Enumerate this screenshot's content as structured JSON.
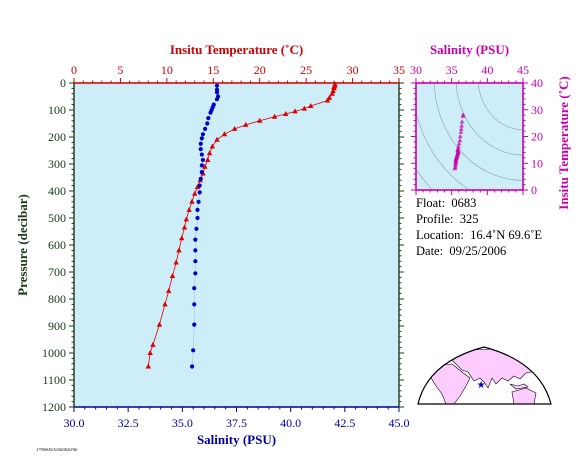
{
  "chart_data": [
    {
      "type": "line",
      "panel": "main-profile",
      "ylabel": "Pressure (decibar)",
      "ylim": [
        1200,
        0
      ],
      "y_ticks": [
        0,
        100,
        200,
        300,
        400,
        500,
        600,
        700,
        800,
        900,
        1000,
        1100,
        1200
      ],
      "top_axis": {
        "label": "Insitu Temperature (˚C)",
        "range": [
          0,
          35
        ],
        "ticks": [
          0,
          5,
          10,
          15,
          20,
          25,
          30,
          35
        ],
        "color": "#cc0000"
      },
      "bottom_axis": {
        "label": "Salinity (PSU)",
        "range": [
          30.0,
          45.0
        ],
        "ticks": [
          "30.0",
          "32.5",
          "35.0",
          "37.5",
          "40.0",
          "42.5",
          "45.0"
        ],
        "color": "#000099"
      },
      "series": [
        {
          "quantity": "temperature",
          "axis": "top",
          "marker": "triangle",
          "color": "#dd0000",
          "points": [
            [
              28.1,
              5
            ],
            [
              28.1,
              10
            ],
            [
              28.0,
              15
            ],
            [
              28.0,
              20
            ],
            [
              27.9,
              30
            ],
            [
              27.8,
              40
            ],
            [
              27.5,
              55
            ],
            [
              27.3,
              65
            ],
            [
              25.5,
              85
            ],
            [
              24.8,
              95
            ],
            [
              23.8,
              105
            ],
            [
              22.8,
              115
            ],
            [
              21.6,
              125
            ],
            [
              20.0,
              140
            ],
            [
              18.5,
              155
            ],
            [
              17.3,
              170
            ],
            [
              16.2,
              190
            ],
            [
              15.4,
              210
            ],
            [
              14.9,
              235
            ],
            [
              14.6,
              260
            ],
            [
              14.4,
              285
            ],
            [
              14.1,
              310
            ],
            [
              13.9,
              335
            ],
            [
              13.6,
              360
            ],
            [
              13.3,
              385
            ],
            [
              13.0,
              410
            ],
            [
              12.7,
              440
            ],
            [
              12.4,
              470
            ],
            [
              12.1,
              505
            ],
            [
              11.9,
              535
            ],
            [
              11.6,
              575
            ],
            [
              11.3,
              620
            ],
            [
              11.0,
              665
            ],
            [
              10.6,
              715
            ],
            [
              10.2,
              770
            ],
            [
              9.8,
              820
            ],
            [
              9.2,
              895
            ],
            [
              8.5,
              970
            ],
            [
              8.2,
              1000
            ],
            [
              8.0,
              1050
            ]
          ]
        },
        {
          "quantity": "salinity",
          "axis": "bottom",
          "marker": "circle",
          "color": "#0000cc",
          "points": [
            [
              36.6,
              10
            ],
            [
              36.6,
              25
            ],
            [
              36.6,
              35
            ],
            [
              36.65,
              50
            ],
            [
              36.6,
              60
            ],
            [
              36.45,
              80
            ],
            [
              36.4,
              90
            ],
            [
              36.35,
              100
            ],
            [
              36.3,
              110
            ],
            [
              36.2,
              130
            ],
            [
              36.15,
              150
            ],
            [
              36.05,
              170
            ],
            [
              35.95,
              190
            ],
            [
              35.9,
              205
            ],
            [
              35.85,
              225
            ],
            [
              35.85,
              245
            ],
            [
              35.9,
              265
            ],
            [
              35.95,
              285
            ],
            [
              35.9,
              305
            ],
            [
              35.9,
              330
            ],
            [
              35.85,
              355
            ],
            [
              35.8,
              380
            ],
            [
              35.8,
              405
            ],
            [
              35.75,
              440
            ],
            [
              35.7,
              470
            ],
            [
              35.7,
              500
            ],
            [
              35.65,
              540
            ],
            [
              35.6,
              580
            ],
            [
              35.6,
              620
            ],
            [
              35.6,
              660
            ],
            [
              35.6,
              705
            ],
            [
              35.55,
              760
            ],
            [
              35.55,
              820
            ],
            [
              35.55,
              895
            ],
            [
              35.5,
              990
            ],
            [
              35.45,
              1050
            ]
          ]
        }
      ]
    },
    {
      "type": "scatter",
      "panel": "ts-diagram",
      "title": "Salinity (PSU)",
      "ylabel": "Insitu Temperature (˚C)",
      "xlim": [
        30,
        45
      ],
      "ylim": [
        0,
        40
      ],
      "x_ticks": [
        30,
        35,
        40,
        45
      ],
      "y_ticks": [
        0,
        10,
        20,
        30,
        40
      ],
      "color": "#cc00aa",
      "points": [
        [
          36.6,
          28.1
        ],
        [
          36.6,
          27.6
        ],
        [
          36.45,
          25.5
        ],
        [
          36.4,
          24.0
        ],
        [
          36.35,
          22.8
        ],
        [
          36.3,
          21.6
        ],
        [
          36.2,
          20.0
        ],
        [
          36.15,
          18.5
        ],
        [
          36.05,
          17.3
        ],
        [
          35.95,
          16.2
        ],
        [
          35.9,
          15.4
        ],
        [
          35.85,
          14.9
        ],
        [
          35.85,
          14.6
        ],
        [
          35.9,
          14.4
        ],
        [
          35.95,
          14.1
        ],
        [
          35.9,
          13.9
        ],
        [
          35.85,
          13.6
        ],
        [
          35.8,
          13.3
        ],
        [
          35.8,
          13.0
        ],
        [
          35.75,
          12.7
        ],
        [
          35.7,
          12.4
        ],
        [
          35.7,
          12.1
        ],
        [
          35.65,
          11.9
        ],
        [
          35.6,
          11.6
        ],
        [
          35.6,
          11.3
        ],
        [
          35.6,
          11.0
        ],
        [
          35.6,
          10.6
        ],
        [
          35.55,
          10.2
        ],
        [
          35.55,
          9.8
        ],
        [
          35.55,
          9.2
        ],
        [
          35.5,
          8.5
        ],
        [
          35.45,
          8.0
        ]
      ]
    }
  ],
  "float_info": {
    "float_label": "Float:",
    "float_value": "0683",
    "profile_label": "Profile:",
    "profile_value": "325",
    "location_label": "Location:",
    "location_value": "16.4˚N  69.6˚E",
    "date_label": "Date:",
    "date_value": "09/25/2006"
  },
  "map": {
    "float_lat": 16.4,
    "float_lon": 69.6,
    "marker_color": "#0000cc",
    "land_color": "#ffccff",
    "ocean_color": "#ffffff"
  },
  "footer_stamp": "1790000/A1060020/06"
}
